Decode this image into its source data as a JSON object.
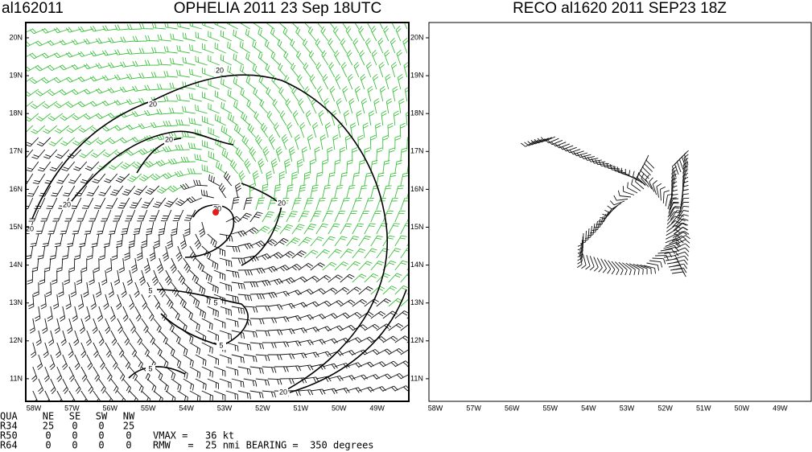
{
  "header": {
    "storm_id": "al162011",
    "left_title": "OPHELIA 2011 23 Sep 18UTC",
    "right_title": "RECO al1620 2011 SEP23 18Z"
  },
  "left_panel": {
    "y_labels": [
      "20N",
      "19N",
      "18N",
      "17N",
      "16N",
      "15N",
      "14N",
      "13N",
      "12N",
      "11N"
    ],
    "x_labels": [
      "58W",
      "57W",
      "56W",
      "55W",
      "54W",
      "53W",
      "52W",
      "51W",
      "50W",
      "49W"
    ],
    "contour_labels": [
      "20",
      "20",
      "20",
      "20",
      "20",
      "20",
      "20",
      "5",
      "5",
      "5",
      "5",
      "20"
    ]
  },
  "right_panel": {
    "y_labels": [
      "20N",
      "19N",
      "18N",
      "17N",
      "16N",
      "15N",
      "14N",
      "13N",
      "12N",
      "11N"
    ],
    "x_labels": [
      "58W",
      "57W",
      "56W",
      "55W",
      "54W",
      "53W",
      "52W",
      "51W",
      "50W",
      "49W"
    ]
  },
  "table": {
    "header": [
      "QUA",
      "NE",
      "SE",
      "SW",
      "NW"
    ],
    "rows": [
      [
        "R34",
        "25",
        "0",
        "0",
        "25"
      ],
      [
        "R50",
        "0",
        "0",
        "0",
        "0"
      ],
      [
        "R64",
        "0",
        "0",
        "0",
        "0"
      ]
    ]
  },
  "summary": [
    "VMAX =   36 kt",
    "RMW   =  25 nmi BEARING =  350 degrees"
  ]
}
